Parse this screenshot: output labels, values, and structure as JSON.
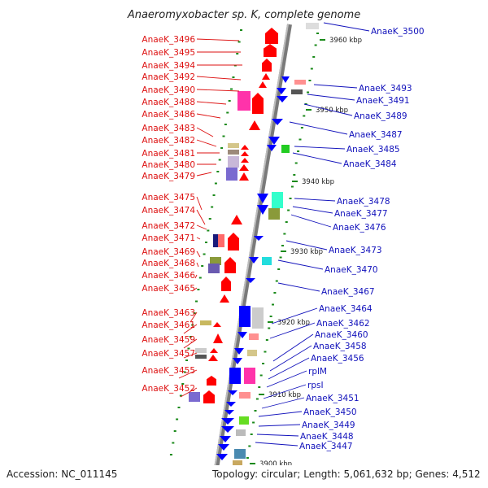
{
  "title": "Anaeromyxobacter sp. K, complete genome",
  "accession": "Accession: NC_011145",
  "topology": "Topology: circular; Length: 5,061,632 bp; Genes: 4,512",
  "colors": {
    "left_label": "#dd1111",
    "right_label": "#1111bb",
    "backbone": "#8a8a8a",
    "tick": "#1a8a1a"
  },
  "kbp_labels": [
    "3960 kbp",
    "3950 kbp",
    "3940 kbp",
    "3930 kbp",
    "3920 kbp",
    "3910 kbp",
    "3900 kbp"
  ],
  "left_labels": [
    "AnaeK_3496",
    "AnaeK_3495",
    "AnaeK_3494",
    "AnaeK_3492",
    "AnaeK_3490",
    "AnaeK_3488",
    "AnaeK_3486",
    "AnaeK_3483",
    "AnaeK_3482",
    "AnaeK_3481",
    "AnaeK_3480",
    "AnaeK_3479",
    "AnaeK_3475",
    "AnaeK_3474",
    "AnaeK_3472",
    "AnaeK_3471",
    "AnaeK_3469",
    "AnaeK_3468",
    "AnaeK_3466",
    "AnaeK_3465",
    "AnaeK_3463",
    "AnaeK_3461",
    "AnaeK_3459",
    "AnaeK_3457",
    "AnaeK_3455",
    "AnaeK_3452"
  ],
  "right_labels": [
    "AnaeK_3500",
    "AnaeK_3493",
    "AnaeK_3491",
    "AnaeK_3489",
    "AnaeK_3487",
    "AnaeK_3485",
    "AnaeK_3484",
    "AnaeK_3478",
    "AnaeK_3477",
    "AnaeK_3476",
    "AnaeK_3473",
    "AnaeK_3470",
    "AnaeK_3467",
    "AnaeK_3464",
    "AnaeK_3462",
    "AnaeK_3460",
    "AnaeK_3458",
    "AnaeK_3456",
    "rplM",
    "rpsI",
    "AnaeK_3451",
    "AnaeK_3450",
    "AnaeK_3449",
    "AnaeK_3448",
    "AnaeK_3447"
  ]
}
